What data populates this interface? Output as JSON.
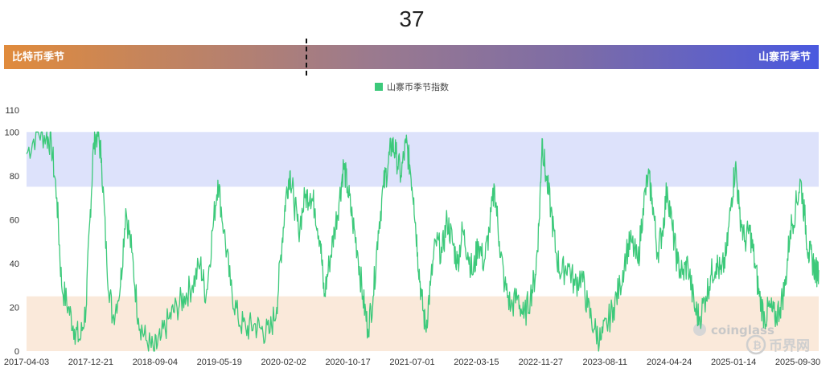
{
  "header": {
    "current_value": "37",
    "left_season": "比特币季节",
    "right_season": "山寨币季节"
  },
  "colors": {
    "line": "#3cc97a",
    "altseason_band": "#dde2fb",
    "bitcoin_band": "#fae9da"
  },
  "watermarks": {
    "coinglass": "coinglass",
    "bijie": "币界网"
  },
  "chart_data": {
    "type": "line",
    "title": "",
    "xlabel": "",
    "ylabel": "",
    "ylim": [
      0,
      110
    ],
    "yticks": [
      0,
      20,
      40,
      60,
      80,
      100,
      110
    ],
    "xlim": [
      "2017-04-03",
      "2025-11-05"
    ],
    "xtick_labels": [
      "2017-04-03",
      "2017-12-21",
      "2018-09-04",
      "2019-05-19",
      "2020-02-02",
      "2020-10-17",
      "2021-07-01",
      "2022-03-15",
      "2022-11-27",
      "2023-08-11",
      "2024-04-24",
      "2025-01-14",
      "2025-09-30"
    ],
    "bands": [
      {
        "from": 75,
        "to": 100,
        "meaning": "altseason"
      },
      {
        "from": 0,
        "to": 25,
        "meaning": "bitcoin season"
      }
    ],
    "legend": {
      "position": "top-center"
    },
    "series": [
      {
        "name": "山寨币季节指数",
        "points": [
          [
            "2017-04-03",
            90
          ],
          [
            "2017-05-15",
            100
          ],
          [
            "2017-06-20",
            98
          ],
          [
            "2017-07-10",
            95
          ],
          [
            "2017-08-01",
            70
          ],
          [
            "2017-08-20",
            30
          ],
          [
            "2017-09-15",
            20
          ],
          [
            "2017-10-10",
            10
          ],
          [
            "2017-11-01",
            5
          ],
          [
            "2017-11-25",
            20
          ],
          [
            "2017-12-10",
            60
          ],
          [
            "2017-12-25",
            95
          ],
          [
            "2018-01-10",
            100
          ],
          [
            "2018-01-25",
            88
          ],
          [
            "2018-02-15",
            40
          ],
          [
            "2018-03-10",
            15
          ],
          [
            "2018-04-10",
            30
          ],
          [
            "2018-05-01",
            65
          ],
          [
            "2018-05-25",
            45
          ],
          [
            "2018-06-20",
            15
          ],
          [
            "2018-07-20",
            5
          ],
          [
            "2018-08-20",
            0
          ],
          [
            "2018-09-15",
            5
          ],
          [
            "2018-10-20",
            15
          ],
          [
            "2018-11-20",
            20
          ],
          [
            "2018-12-20",
            25
          ],
          [
            "2019-01-20",
            30
          ],
          [
            "2019-02-20",
            40
          ],
          [
            "2019-03-15",
            25
          ],
          [
            "2019-04-10",
            55
          ],
          [
            "2019-05-01",
            78
          ],
          [
            "2019-05-25",
            55
          ],
          [
            "2019-06-20",
            30
          ],
          [
            "2019-07-20",
            15
          ],
          [
            "2019-08-20",
            10
          ],
          [
            "2019-09-20",
            12
          ],
          [
            "2019-10-20",
            10
          ],
          [
            "2019-11-20",
            8
          ],
          [
            "2019-12-20",
            20
          ],
          [
            "2020-01-10",
            50
          ],
          [
            "2020-01-25",
            70
          ],
          [
            "2020-02-10",
            82
          ],
          [
            "2020-02-25",
            70
          ],
          [
            "2020-03-15",
            55
          ],
          [
            "2020-04-10",
            70
          ],
          [
            "2020-05-01",
            72
          ],
          [
            "2020-05-20",
            65
          ],
          [
            "2020-06-10",
            50
          ],
          [
            "2020-06-25",
            25
          ],
          [
            "2020-07-15",
            40
          ],
          [
            "2020-08-05",
            55
          ],
          [
            "2020-08-25",
            70
          ],
          [
            "2020-09-10",
            85
          ],
          [
            "2020-09-25",
            75
          ],
          [
            "2020-10-15",
            60
          ],
          [
            "2020-11-05",
            45
          ],
          [
            "2020-11-25",
            25
          ],
          [
            "2020-12-15",
            10
          ],
          [
            "2021-01-05",
            25
          ],
          [
            "2021-01-25",
            55
          ],
          [
            "2021-02-15",
            75
          ],
          [
            "2021-03-05",
            85
          ],
          [
            "2021-03-20",
            95
          ],
          [
            "2021-04-05",
            90
          ],
          [
            "2021-04-25",
            80
          ],
          [
            "2021-05-15",
            95
          ],
          [
            "2021-05-30",
            85
          ],
          [
            "2021-06-15",
            70
          ],
          [
            "2021-06-30",
            45
          ],
          [
            "2021-07-15",
            25
          ],
          [
            "2021-08-01",
            10
          ],
          [
            "2021-08-20",
            30
          ],
          [
            "2021-09-10",
            50
          ],
          [
            "2021-10-05",
            45
          ],
          [
            "2021-10-25",
            60
          ],
          [
            "2021-11-15",
            50
          ],
          [
            "2021-12-05",
            40
          ],
          [
            "2021-12-25",
            55
          ],
          [
            "2022-01-15",
            45
          ],
          [
            "2022-02-05",
            35
          ],
          [
            "2022-02-25",
            50
          ],
          [
            "2022-03-20",
            40
          ],
          [
            "2022-04-10",
            55
          ],
          [
            "2022-05-01",
            75
          ],
          [
            "2022-05-20",
            50
          ],
          [
            "2022-06-10",
            30
          ],
          [
            "2022-07-05",
            20
          ],
          [
            "2022-08-01",
            25
          ],
          [
            "2022-08-25",
            15
          ],
          [
            "2022-09-20",
            25
          ],
          [
            "2022-10-10",
            35
          ],
          [
            "2022-10-25",
            60
          ],
          [
            "2022-11-05",
            97
          ],
          [
            "2022-11-20",
            80
          ],
          [
            "2022-12-10",
            65
          ],
          [
            "2022-12-30",
            45
          ],
          [
            "2023-01-20",
            35
          ],
          [
            "2023-02-15",
            40
          ],
          [
            "2023-03-15",
            30
          ],
          [
            "2023-04-10",
            35
          ],
          [
            "2023-05-05",
            20
          ],
          [
            "2023-06-01",
            10
          ],
          [
            "2023-06-25",
            5
          ],
          [
            "2023-07-20",
            12
          ],
          [
            "2023-08-15",
            20
          ],
          [
            "2023-09-10",
            30
          ],
          [
            "2023-10-05",
            45
          ],
          [
            "2023-10-25",
            50
          ],
          [
            "2023-11-20",
            40
          ],
          [
            "2023-12-10",
            65
          ],
          [
            "2023-12-30",
            80
          ],
          [
            "2024-01-15",
            70
          ],
          [
            "2024-02-05",
            45
          ],
          [
            "2024-02-25",
            55
          ],
          [
            "2024-03-15",
            75
          ],
          [
            "2024-04-05",
            55
          ],
          [
            "2024-04-25",
            40
          ],
          [
            "2024-05-15",
            35
          ],
          [
            "2024-06-05",
            40
          ],
          [
            "2024-06-30",
            20
          ],
          [
            "2024-07-20",
            15
          ],
          [
            "2024-08-15",
            25
          ],
          [
            "2024-09-05",
            35
          ],
          [
            "2024-09-25",
            40
          ],
          [
            "2024-10-15",
            35
          ],
          [
            "2024-11-05",
            45
          ],
          [
            "2024-11-25",
            70
          ],
          [
            "2024-12-10",
            85
          ],
          [
            "2024-12-25",
            65
          ],
          [
            "2025-01-15",
            50
          ],
          [
            "2025-02-05",
            55
          ],
          [
            "2025-02-25",
            40
          ],
          [
            "2025-03-15",
            25
          ],
          [
            "2025-04-05",
            15
          ],
          [
            "2025-04-25",
            20
          ],
          [
            "2025-05-15",
            15
          ],
          [
            "2025-06-05",
            20
          ],
          [
            "2025-06-25",
            30
          ],
          [
            "2025-07-15",
            55
          ],
          [
            "2025-08-05",
            65
          ],
          [
            "2025-08-25",
            78
          ],
          [
            "2025-09-10",
            62
          ],
          [
            "2025-09-25",
            45
          ],
          [
            "2025-10-10",
            42
          ],
          [
            "2025-10-25",
            36
          ],
          [
            "2025-11-05",
            37
          ]
        ]
      }
    ]
  }
}
